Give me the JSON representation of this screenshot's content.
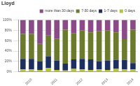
{
  "chart_data": {
    "type": "bar",
    "title": "Lloyd",
    "categories": [
      null,
      "2010",
      null,
      null,
      "2011",
      null,
      null,
      "2012",
      null,
      null,
      "2013",
      null,
      null,
      "2014"
    ],
    "series": [
      {
        "name": "0 days",
        "color": "#b5c43a",
        "values": [
          5,
          5,
          4,
          8,
          4,
          3,
          6,
          5,
          4,
          5,
          4,
          6,
          5,
          5
        ]
      },
      {
        "name": "1-7 days",
        "color": "#1c2f5e",
        "values": [
          20,
          20,
          16,
          22,
          18,
          13,
          18,
          20,
          20,
          15,
          18,
          17,
          18,
          12
        ]
      },
      {
        "name": "7-30 days",
        "color": "#6b7a2c",
        "values": [
          48,
          48,
          34,
          40,
          42,
          65,
          50,
          55,
          52,
          58,
          58,
          53,
          40,
          64
        ]
      },
      {
        "name": "more than 30 days",
        "color": "#8a4b86",
        "values": [
          27,
          27,
          46,
          30,
          36,
          19,
          26,
          20,
          24,
          22,
          20,
          24,
          37,
          19
        ]
      }
    ],
    "stacked": true,
    "ylim": [
      0,
      100
    ],
    "yticks": [
      {
        "value": 0,
        "label": "0%"
      },
      {
        "value": 20,
        "label": "20%"
      },
      {
        "value": 40,
        "label": "40%"
      },
      {
        "value": 60,
        "label": "60%"
      },
      {
        "value": 80,
        "label": "80%"
      },
      {
        "value": 100,
        "label": "100%"
      }
    ],
    "grid": true,
    "legend": "top"
  }
}
